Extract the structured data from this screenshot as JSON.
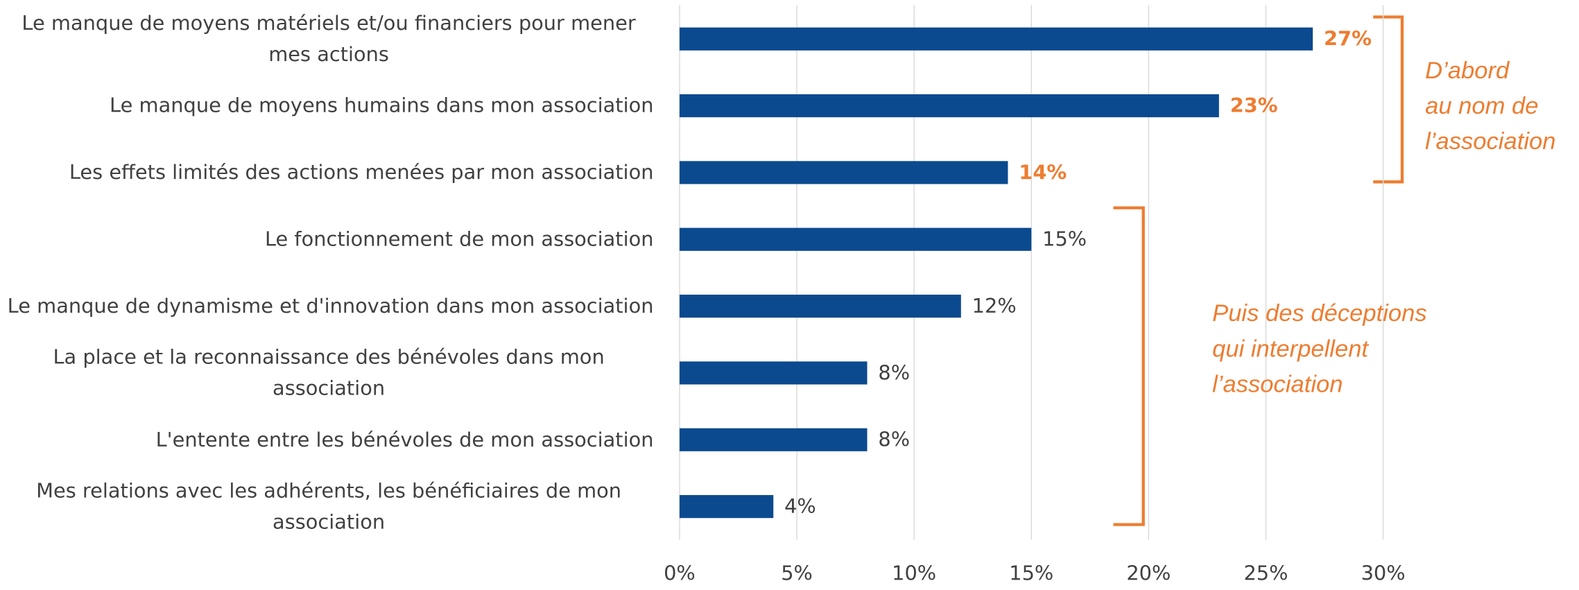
{
  "chart_data": {
    "type": "bar",
    "orientation": "horizontal",
    "categories": [
      "Le manque de moyens matériels et/ou financiers pour mener mes actions",
      "Le manque de moyens humains dans mon association",
      "Les effets limités des actions menées par mon association",
      "Le fonctionnement de mon association",
      "Le manque de dynamisme et d'innovation dans mon association",
      "La place et la reconnaissance des bénévoles dans mon association",
      "L'entente entre les bénévoles de mon association",
      "Mes relations avec les adhérents, les bénéficiaires de mon association"
    ],
    "values": [
      27,
      23,
      14,
      15,
      12,
      8,
      8,
      4
    ],
    "value_labels": [
      "27%",
      "23%",
      "14%",
      "15%",
      "12%",
      "8%",
      "8%",
      "4%"
    ],
    "label_colors": [
      "#ED7D31",
      "#ED7D31",
      "#ED7D31",
      "#404040",
      "#404040",
      "#404040",
      "#404040",
      "#404040"
    ],
    "color": "#0B4A8F",
    "xlim": [
      0,
      30
    ],
    "xticks": [
      {
        "value": 0,
        "label": "0%"
      },
      {
        "value": 5,
        "label": "5%"
      },
      {
        "value": 10,
        "label": "10%"
      },
      {
        "value": 15,
        "label": "15%"
      },
      {
        "value": 20,
        "label": "20%"
      },
      {
        "value": 25,
        "label": "25%"
      },
      {
        "value": 30,
        "label": "30%"
      }
    ],
    "grid": true,
    "annotations": [
      {
        "lines": [
          "D’abord",
          "au nom de",
          "l’association"
        ]
      },
      {
        "lines": [
          "Puis des déceptions",
          "qui interpellent",
          "l’association"
        ]
      }
    ]
  }
}
